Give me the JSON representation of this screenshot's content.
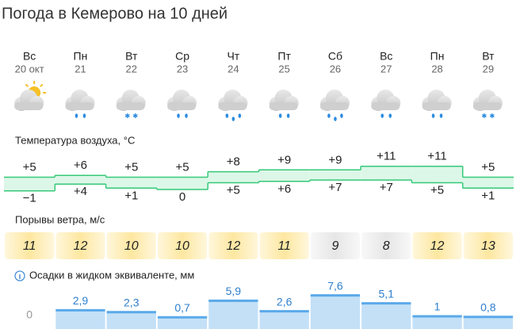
{
  "header": {
    "title": "Погода в Кемерово на 10 дней"
  },
  "sections": {
    "temperature": "Температура воздуха, °C",
    "gusts": "Порывы ветра, м/с",
    "precip": "Осадки в жидком эквиваленте, мм"
  },
  "days": [
    {
      "weekday": "Вс",
      "date": "20 окт",
      "temp_max": {
        "value": 5,
        "label": "+5"
      },
      "temp_min": {
        "value": -1,
        "label": "−1"
      },
      "gust": 11,
      "precip": 0
    },
    {
      "weekday": "Пн",
      "date": "21",
      "temp_max": {
        "value": 6,
        "label": "+6"
      },
      "temp_min": {
        "value": 4,
        "label": "+4"
      },
      "gust": 12,
      "precip": {
        "value": 2.9,
        "label": "2,9"
      }
    },
    {
      "weekday": "Вт",
      "date": "22",
      "temp_max": {
        "value": 5,
        "label": "+5"
      },
      "temp_min": {
        "value": 1,
        "label": "+1"
      },
      "gust": 10,
      "precip": {
        "value": 2.3,
        "label": "2,3"
      }
    },
    {
      "weekday": "Ср",
      "date": "23",
      "temp_max": {
        "value": 5,
        "label": "+5"
      },
      "temp_min": 0,
      "gust": 10,
      "precip": {
        "value": 0.7,
        "label": "0,7"
      }
    },
    {
      "weekday": "Чт",
      "date": "24",
      "temp_max": {
        "value": 8,
        "label": "+8"
      },
      "temp_min": {
        "value": 5,
        "label": "+5"
      },
      "gust": 12,
      "precip": {
        "value": 5.9,
        "label": "5,9"
      }
    },
    {
      "weekday": "Пт",
      "date": "25",
      "temp_max": {
        "value": 9,
        "label": "+9"
      },
      "temp_min": {
        "value": 6,
        "label": "+6"
      },
      "gust": 11,
      "precip": {
        "value": 2.6,
        "label": "2,6"
      }
    },
    {
      "weekday": "Сб",
      "date": "26",
      "temp_max": {
        "value": 9,
        "label": "+9"
      },
      "temp_min": {
        "value": 7,
        "label": "+7"
      },
      "gust": 9,
      "precip": {
        "value": 7.6,
        "label": "7,6"
      }
    },
    {
      "weekday": "Вс",
      "date": "27",
      "temp_max": {
        "value": 11,
        "label": "+11"
      },
      "temp_min": {
        "value": 7,
        "label": "+7"
      },
      "gust": 8,
      "precip": {
        "value": 5.1,
        "label": "5,1"
      }
    },
    {
      "weekday": "Пн",
      "date": "28",
      "temp_max": {
        "value": 11,
        "label": "+11"
      },
      "temp_min": {
        "value": 5,
        "label": "+5"
      },
      "gust": 12,
      "precip": 1
    },
    {
      "weekday": "Вт",
      "date": "29",
      "temp_max": {
        "value": 5,
        "label": "+5"
      },
      "temp_min": {
        "value": 1,
        "label": "+1"
      },
      "gust": 13,
      "precip": {
        "value": 0.8,
        "label": "0,8"
      }
    }
  ]
}
